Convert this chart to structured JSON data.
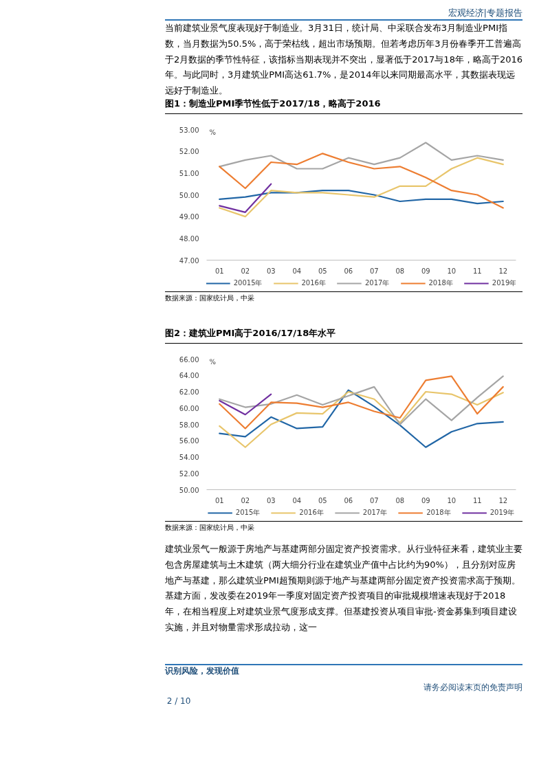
{
  "chart_data": [
    {
      "type": "line",
      "title": "图1：制造业PMI季节性低于2017/18，略高于2016",
      "ylabel": "%",
      "annotations": [
        "宏观经济|专题报告",
        "当前建筑业景气度表现好于制造业。3月31日，统计局、中采联合发布3月制造业PMI指数，当月数据为50.5%，高于荣枯线，超出市场预期。但若考虑历年3月份春季开工普遍高于2月数据的季节性特征，该指标当期表现并不突出，显著低于2017与18年，略高于2016年。与此同时，3月建筑业PMI高达61.7%，是2014年以来同期最高水平，其数据表现远远好于制造业。",
        "数据来源：国家统计局，中采"
      ],
      "categories": [
        "01",
        "02",
        "03",
        "04",
        "05",
        "06",
        "07",
        "08",
        "09",
        "10",
        "11",
        "12"
      ],
      "ylim": [
        47,
        53
      ],
      "yticks": [
        {
          "value": 47,
          "label": "47.00"
        },
        {
          "value": 48,
          "label": "48.00"
        },
        {
          "value": 49,
          "label": "49.00"
        },
        {
          "value": 50,
          "label": "50.00"
        },
        {
          "value": 51,
          "label": "51.00"
        },
        {
          "value": 52,
          "label": "52.00"
        },
        {
          "value": 53,
          "label": "53.00"
        }
      ],
      "grid": false,
      "legend": "bottom",
      "series": [
        {
          "name": "20015年",
          "color": "#2166a6",
          "values": [
            49.8,
            49.9,
            50.1,
            50.1,
            50.2,
            50.2,
            50.0,
            49.7,
            49.8,
            49.8,
            49.6,
            49.7
          ]
        },
        {
          "name": "2016年",
          "color": "#e8c56b",
          "values": [
            49.4,
            49.0,
            50.2,
            50.1,
            50.1,
            50.0,
            49.9,
            50.4,
            50.4,
            51.2,
            51.7,
            51.4
          ]
        },
        {
          "name": "2017年",
          "color": "#a5a5a5",
          "values": [
            51.3,
            51.6,
            51.8,
            51.2,
            51.2,
            51.7,
            51.4,
            51.7,
            52.4,
            51.6,
            51.8,
            51.6
          ]
        },
        {
          "name": "2018年",
          "color": "#ed7d31",
          "values": [
            51.3,
            50.3,
            51.5,
            51.4,
            51.9,
            51.5,
            51.2,
            51.3,
            50.8,
            50.2,
            50.0,
            49.4
          ]
        },
        {
          "name": "2019年",
          "color": "#7030a0",
          "values": [
            49.5,
            49.2,
            50.5,
            null,
            null,
            null,
            null,
            null,
            null,
            null,
            null,
            null
          ]
        }
      ]
    },
    {
      "type": "line",
      "title": "图2：建筑业PMI高于2016/17/18年水平",
      "ylabel": "%",
      "annotations": [
        "数据来源：国家统计局，中采",
        "建筑业景气一般源于房地产与基建两部分固定资产投资需求。从行业特征来看，建筑业主要包含房屋建筑与土木建筑（两大细分行业在建筑业产值中占比约为90%），且分别对应房地产与基建，那么建筑业PMI超预期则源于地产与基建两部分固定资产投资需求高于预期。基建方面，发改委在2019年一季度对固定资产投资项目的审批规模增速表现好于2018年，在相当程度上对建筑业景气度形成支撑。但基建投资从项目审批-资金募集到项目建设实施，并且对物量需求形成拉动，这一",
        "识别风险，发现价值",
        "请务必阅读末页的免责声明",
        "2 / 10"
      ],
      "categories": [
        "01",
        "02",
        "03",
        "04",
        "05",
        "06",
        "07",
        "08",
        "09",
        "10",
        "11",
        "12"
      ],
      "ylim": [
        50,
        66
      ],
      "yticks": [
        {
          "value": 50,
          "label": "50.00"
        },
        {
          "value": 52,
          "label": "52.00"
        },
        {
          "value": 54,
          "label": "54.00"
        },
        {
          "value": 56,
          "label": "56.00"
        },
        {
          "value": 58,
          "label": "58.00"
        },
        {
          "value": 60,
          "label": "60.00"
        },
        {
          "value": 62,
          "label": "62.00"
        },
        {
          "value": 64,
          "label": "64.00"
        },
        {
          "value": 66,
          "label": "66.00"
        }
      ],
      "grid": false,
      "legend": "bottom",
      "series": [
        {
          "name": "2015年",
          "color": "#2166a6",
          "values": [
            56.9,
            56.5,
            58.9,
            57.5,
            57.7,
            62.2,
            60.2,
            57.9,
            55.2,
            57.1,
            58.1,
            58.3
          ]
        },
        {
          "name": "2016年",
          "color": "#e8c56b",
          "values": [
            57.8,
            55.2,
            58.0,
            59.4,
            59.3,
            62.0,
            61.1,
            58.2,
            62.0,
            61.7,
            60.4,
            61.9
          ]
        },
        {
          "name": "2017年",
          "color": "#a5a5a5",
          "values": [
            61.1,
            60.1,
            60.5,
            61.6,
            60.4,
            61.5,
            62.6,
            58.0,
            61.1,
            58.5,
            61.3,
            63.9
          ]
        },
        {
          "name": "2018年",
          "color": "#ed7d31",
          "values": [
            60.5,
            57.5,
            60.7,
            60.6,
            60.1,
            60.7,
            59.6,
            58.8,
            63.4,
            63.9,
            59.3,
            62.6
          ]
        },
        {
          "name": "2019年",
          "color": "#7030a0",
          "values": [
            60.9,
            59.2,
            61.7,
            null,
            null,
            null,
            null,
            null,
            null,
            null,
            null,
            null
          ]
        }
      ]
    }
  ]
}
